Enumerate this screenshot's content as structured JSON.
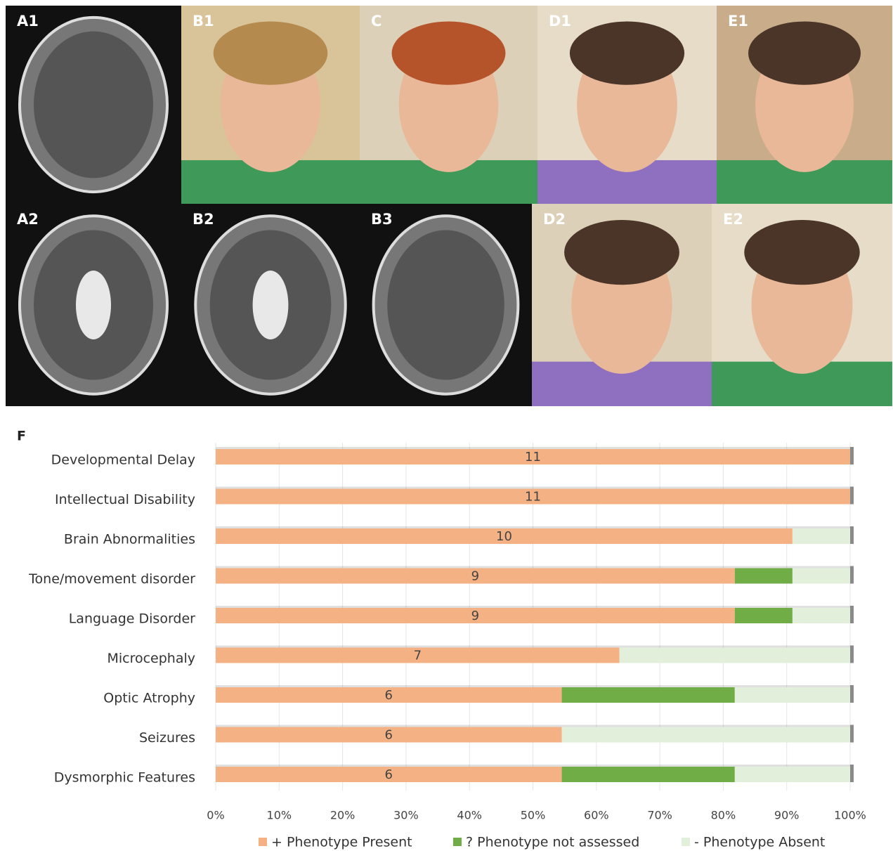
{
  "panels": [
    {
      "label": "A1"
    },
    {
      "label": "B1"
    },
    {
      "label": "C"
    },
    {
      "label": "D1"
    },
    {
      "label": "E1"
    },
    {
      "label": "A2"
    },
    {
      "label": "B2"
    },
    {
      "label": "B3"
    },
    {
      "label": "D2"
    },
    {
      "label": "E2"
    }
  ],
  "chart_data": {
    "type": "stacked_barh",
    "panel_label": "F",
    "categories": [
      "Developmental Delay",
      "Intellectual Disability",
      "Brain Abnormalities",
      "Tone/movement disorder",
      "Language Disorder",
      "Microcephaly",
      "Optic Atrophy",
      "Seizures",
      "Dysmorphic Features"
    ],
    "series": [
      {
        "name": "+ Phenotype Present",
        "color": "#f4b183",
        "values": [
          11,
          11,
          10,
          9,
          9,
          7,
          6,
          6,
          6
        ]
      },
      {
        "name": "? Phenotype not assessed",
        "color": "#70ad47",
        "values": [
          0,
          0,
          0,
          1,
          1,
          0,
          3,
          0,
          3
        ]
      },
      {
        "name": "- Phenotype Absent",
        "color": "#e2efda",
        "values": [
          0,
          0,
          1,
          1,
          1,
          4,
          2,
          5,
          2
        ]
      }
    ],
    "xlim": [
      0,
      11
    ],
    "xticks": [
      {
        "value": 0,
        "label": "0%"
      },
      {
        "value": 1.1,
        "label": "10%"
      },
      {
        "value": 2.2,
        "label": "20%"
      },
      {
        "value": 3.3,
        "label": "30%"
      },
      {
        "value": 4.4,
        "label": "40%"
      },
      {
        "value": 5.5,
        "label": "50%"
      },
      {
        "value": 6.6,
        "label": "60%"
      },
      {
        "value": 7.7,
        "label": "70%"
      },
      {
        "value": 8.8,
        "label": "80%"
      },
      {
        "value": 9.9,
        "label": "90%"
      },
      {
        "value": 11,
        "label": "100%"
      }
    ],
    "grid": true,
    "legend": "bottom"
  }
}
